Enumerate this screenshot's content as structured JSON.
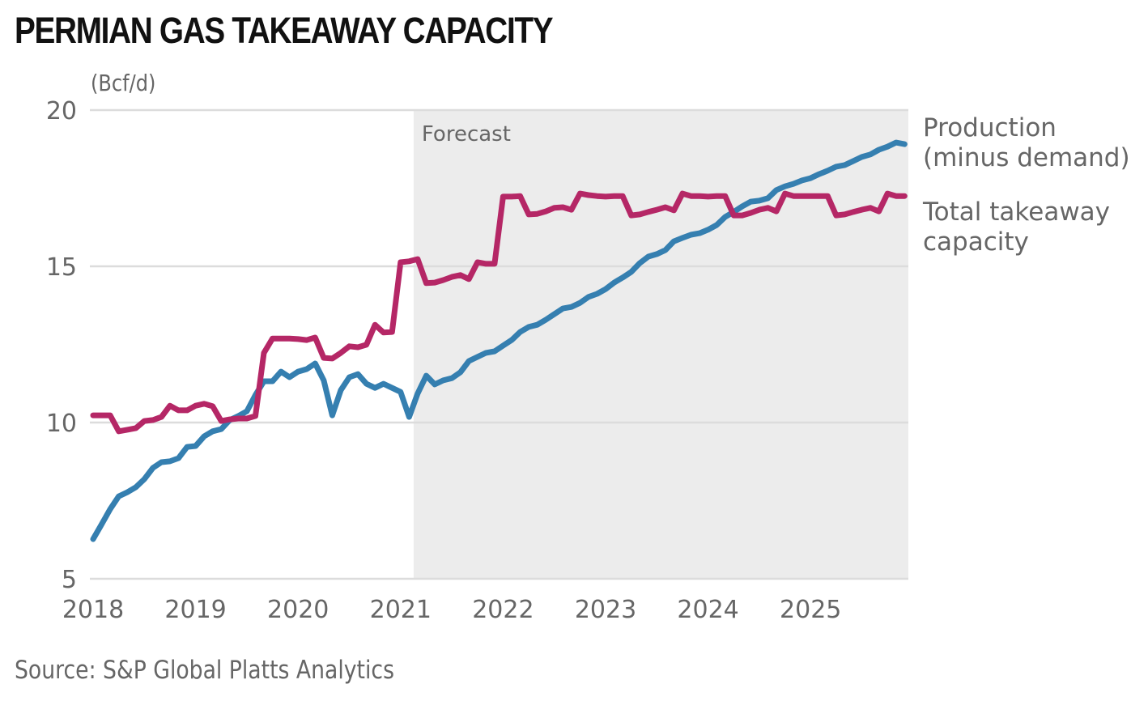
{
  "chart_data": {
    "type": "line",
    "title": "PERMIAN GAS TAKEAWAY CAPACITY",
    "ylabel": "(Bcf/d)",
    "xlabel": "",
    "source": "Source: S&P Global Platts Analytics",
    "ylim": [
      5,
      20
    ],
    "yticks": [
      5,
      10,
      15,
      20
    ],
    "xticks": [
      "2018",
      "2019",
      "2020",
      "2021",
      "2022",
      "2023",
      "2024",
      "2025"
    ],
    "x_start": "2018-01",
    "x_frequency": "monthly",
    "grid": true,
    "forecast": {
      "label": "Forecast",
      "start": "2021-03"
    },
    "legend_placement": "right, at line ends",
    "series": [
      {
        "name": "Production (minus demand)",
        "label_lines": [
          "Production",
          "(minus demand)"
        ],
        "color": "#357fb0",
        "values": [
          6.27,
          6.74,
          7.23,
          7.64,
          7.77,
          7.93,
          8.19,
          8.55,
          8.73,
          8.76,
          8.86,
          9.22,
          9.25,
          9.56,
          9.72,
          9.79,
          10.08,
          10.21,
          10.36,
          10.88,
          11.32,
          11.32,
          11.63,
          11.45,
          11.63,
          11.71,
          11.89,
          11.35,
          10.23,
          11.04,
          11.45,
          11.55,
          11.24,
          11.11,
          11.24,
          11.11,
          10.98,
          10.18,
          10.93,
          11.5,
          11.22,
          11.35,
          11.42,
          11.61,
          11.97,
          12.1,
          12.23,
          12.28,
          12.46,
          12.64,
          12.9,
          13.06,
          13.13,
          13.29,
          13.47,
          13.65,
          13.7,
          13.83,
          14.02,
          14.12,
          14.27,
          14.48,
          14.64,
          14.82,
          15.1,
          15.31,
          15.39,
          15.52,
          15.8,
          15.91,
          16.01,
          16.06,
          16.17,
          16.32,
          16.58,
          16.74,
          16.92,
          17.07,
          17.1,
          17.18,
          17.44,
          17.56,
          17.64,
          17.75,
          17.82,
          17.95,
          18.06,
          18.19,
          18.24,
          18.37,
          18.5,
          18.58,
          18.73,
          18.83,
          18.96,
          18.91
        ]
      },
      {
        "name": "Total takeaway capacity",
        "label_lines": [
          "Total takeaway",
          "capacity"
        ],
        "color": "#b52766",
        "values": [
          10.23,
          10.23,
          10.23,
          9.72,
          9.77,
          9.82,
          10.05,
          10.08,
          10.18,
          10.54,
          10.39,
          10.39,
          10.54,
          10.6,
          10.52,
          10.05,
          10.1,
          10.13,
          10.13,
          10.21,
          12.23,
          12.69,
          12.69,
          12.69,
          12.67,
          12.64,
          12.72,
          12.07,
          12.05,
          12.23,
          12.44,
          12.41,
          12.49,
          13.13,
          12.88,
          12.9,
          15.13,
          15.16,
          15.23,
          14.46,
          14.48,
          14.56,
          14.66,
          14.72,
          14.59,
          15.13,
          15.08,
          15.08,
          17.23,
          17.23,
          17.25,
          16.66,
          16.68,
          16.76,
          16.87,
          16.89,
          16.81,
          17.33,
          17.28,
          17.25,
          17.23,
          17.25,
          17.25,
          16.63,
          16.66,
          16.74,
          16.81,
          16.89,
          16.79,
          17.33,
          17.25,
          17.25,
          17.23,
          17.25,
          17.25,
          16.63,
          16.63,
          16.71,
          16.81,
          16.87,
          16.76,
          17.33,
          17.25,
          17.25,
          17.25,
          17.25,
          17.25,
          16.63,
          16.66,
          16.74,
          16.81,
          16.87,
          16.76,
          17.33,
          17.25,
          17.25
        ]
      }
    ]
  }
}
